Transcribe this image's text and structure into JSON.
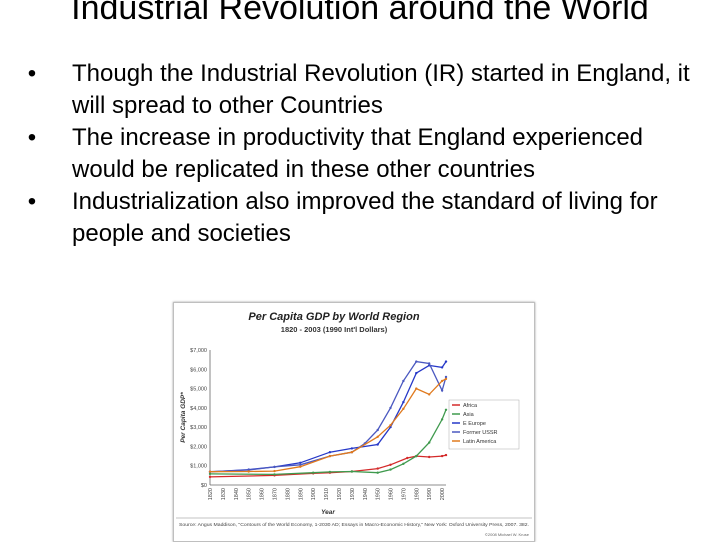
{
  "slide": {
    "title": "Industrial Revolution around the World",
    "bullets": [
      "Though the Industrial Revolution (IR) started in England, it will spread to other Countries",
      "The increase in productivity that England experienced would be replicated in these other countries",
      "Industrialization also improved the standard of living for people and societies"
    ],
    "bullet_glyph": "•"
  },
  "chart_data": {
    "type": "line",
    "title": "Per Capita GDP by World Region",
    "subtitle": "1820 - 2003 (1990 Int'l Dollars)",
    "xlabel": "Year",
    "ylabel": "Per Capita GDP*",
    "x": [
      1820,
      1830,
      1840,
      1850,
      1860,
      1870,
      1880,
      1890,
      1900,
      1910,
      1920,
      1930,
      1940,
      1950,
      1960,
      1970,
      1980,
      1990,
      2000
    ],
    "x_tick_labels": [
      "1820",
      "1830",
      "1840",
      "1850",
      "1860",
      "1870",
      "1880",
      "1890",
      "1900",
      "1910",
      "1920",
      "1930",
      "1940",
      "1950",
      "1960",
      "1970",
      "1980",
      "1990",
      "2000"
    ],
    "y_ticks": [
      0,
      1000,
      2000,
      3000,
      4000,
      5000,
      6000,
      7000
    ],
    "y_tick_labels": [
      "$0",
      "$1,000",
      "$2,000",
      "$3,000",
      "$4,000",
      "$5,000",
      "$6,000",
      "$7,000"
    ],
    "ylim": [
      0,
      7000
    ],
    "xlim": [
      1820,
      2003
    ],
    "grid": false,
    "legend_position": "right",
    "series": [
      {
        "name": "Africa",
        "color": "#d42a2a",
        "points": [
          [
            1820,
            420
          ],
          [
            1870,
            500
          ],
          [
            1900,
            600
          ],
          [
            1913,
            640
          ],
          [
            1930,
            700
          ],
          [
            1950,
            850
          ],
          [
            1960,
            1050
          ],
          [
            1973,
            1400
          ],
          [
            1980,
            1500
          ],
          [
            1990,
            1450
          ],
          [
            2000,
            1500
          ],
          [
            2003,
            1550
          ]
        ]
      },
      {
        "name": "Asia",
        "color": "#3f9a4e",
        "points": [
          [
            1820,
            575
          ],
          [
            1870,
            550
          ],
          [
            1900,
            640
          ],
          [
            1913,
            680
          ],
          [
            1930,
            700
          ],
          [
            1950,
            640
          ],
          [
            1960,
            800
          ],
          [
            1970,
            1100
          ],
          [
            1980,
            1500
          ],
          [
            1990,
            2200
          ],
          [
            2000,
            3400
          ],
          [
            2003,
            3900
          ]
        ]
      },
      {
        "name": "E Europe",
        "color": "#2638c8",
        "points": [
          [
            1820,
            680
          ],
          [
            1850,
            800
          ],
          [
            1870,
            940
          ],
          [
            1890,
            1150
          ],
          [
            1913,
            1700
          ],
          [
            1930,
            1900
          ],
          [
            1950,
            2100
          ],
          [
            1960,
            3000
          ],
          [
            1970,
            4300
          ],
          [
            1980,
            5800
          ],
          [
            1990,
            6200
          ],
          [
            2000,
            6100
          ],
          [
            2003,
            6400
          ]
        ]
      },
      {
        "name": "Former USSR",
        "color": "#4a58c0",
        "points": [
          [
            1820,
            690
          ],
          [
            1850,
            780
          ],
          [
            1870,
            940
          ],
          [
            1890,
            1050
          ],
          [
            1913,
            1500
          ],
          [
            1930,
            1700
          ],
          [
            1940,
            2150
          ],
          [
            1950,
            2850
          ],
          [
            1960,
            4000
          ],
          [
            1970,
            5400
          ],
          [
            1980,
            6400
          ],
          [
            1990,
            6300
          ],
          [
            2000,
            4900
          ],
          [
            2003,
            5600
          ]
        ]
      },
      {
        "name": "Latin America",
        "color": "#e07a1e",
        "points": [
          [
            1820,
            690
          ],
          [
            1850,
            700
          ],
          [
            1870,
            720
          ],
          [
            1890,
            950
          ],
          [
            1913,
            1500
          ],
          [
            1930,
            1700
          ],
          [
            1950,
            2500
          ],
          [
            1960,
            3100
          ],
          [
            1970,
            3950
          ],
          [
            1980,
            5000
          ],
          [
            1990,
            4700
          ],
          [
            2000,
            5400
          ],
          [
            2003,
            5500
          ]
        ]
      }
    ],
    "footnote": "Source: Angus Maddison, \"Contours of the World Economy, 1-2030 AD; Essays in Macro-Economic History,\" New York: Oxford University Press, 2007. 382.",
    "credit": "©2008 Michael W. Kruse"
  }
}
